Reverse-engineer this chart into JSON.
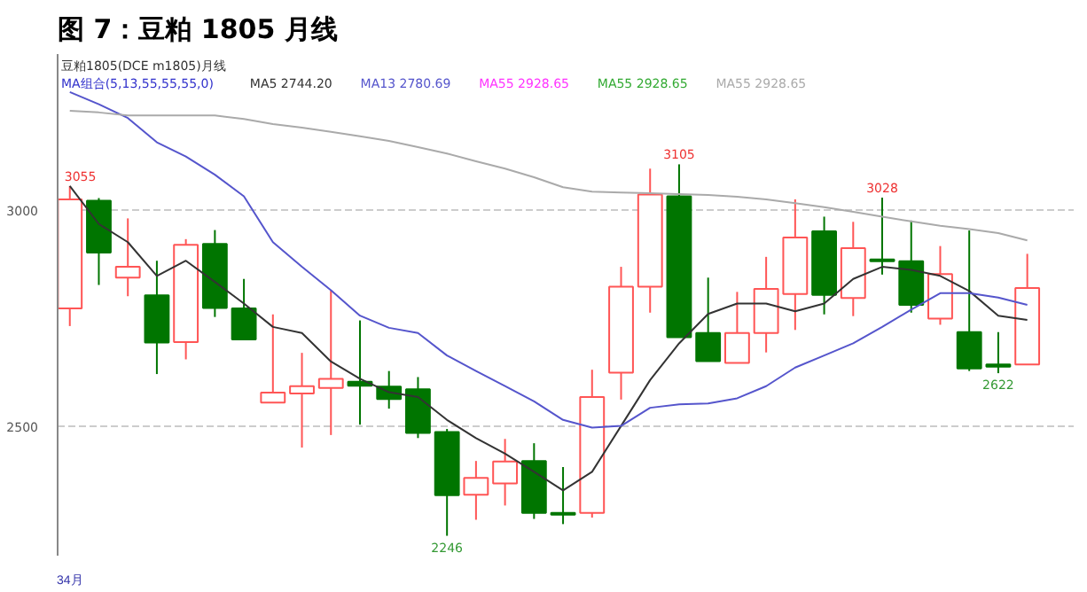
{
  "chart_data": {
    "type": "candlestick",
    "title": "图 7：豆粕 1805 月线",
    "subtitle": "豆粕1805(DCE m1805)月线",
    "legend_title": "MA组合(5,13,55,55,55,0)",
    "categories": [
      "34月",
      null,
      null,
      null,
      null,
      null,
      null,
      null,
      null,
      null,
      null,
      null,
      null,
      null,
      null,
      null,
      null,
      null,
      null,
      null,
      null,
      null,
      null,
      null,
      null,
      null,
      null,
      null,
      null,
      null,
      null,
      null,
      null,
      null
    ],
    "ohlc": [
      [
        2772,
        3055,
        2731,
        3024
      ],
      [
        3021,
        3027,
        2826,
        2901
      ],
      [
        2843,
        2980,
        2800,
        2868
      ],
      [
        2802,
        2882,
        2620,
        2693
      ],
      [
        2694,
        2932,
        2654,
        2919
      ],
      [
        2921,
        2953,
        2752,
        2773
      ],
      [
        2772,
        2840,
        2700,
        2700
      ],
      [
        2554,
        2758,
        2554,
        2577
      ],
      [
        2575,
        2669,
        2450,
        2592
      ],
      [
        2588,
        2814,
        2479,
        2609
      ],
      [
        2602,
        2744,
        2503,
        2593
      ],
      [
        2591,
        2627,
        2540,
        2562
      ],
      [
        2585,
        2613,
        2472,
        2484
      ],
      [
        2486,
        2493,
        2246,
        2340
      ],
      [
        2341,
        2419,
        2283,
        2380
      ],
      [
        2367,
        2470,
        2316,
        2418
      ],
      [
        2419,
        2460,
        2285,
        2299
      ],
      [
        2299,
        2405,
        2273,
        2295
      ],
      [
        2299,
        2630,
        2288,
        2567
      ],
      [
        2623,
        2868,
        2561,
        2822
      ],
      [
        2822,
        3095,
        2762,
        3035
      ],
      [
        3031,
        3105,
        2705,
        2705
      ],
      [
        2715,
        2843,
        2650,
        2650
      ],
      [
        2646,
        2810,
        2646,
        2715
      ],
      [
        2715,
        2891,
        2670,
        2817
      ],
      [
        2805,
        3024,
        2722,
        2936
      ],
      [
        2950,
        2984,
        2758,
        2803
      ],
      [
        2796,
        2972,
        2754,
        2911
      ],
      [
        2885,
        3028,
        2850,
        2881
      ],
      [
        2881,
        2975,
        2762,
        2780
      ],
      [
        2748,
        2916,
        2734,
        2851
      ],
      [
        2717,
        2952,
        2627,
        2633
      ],
      [
        2642,
        2717,
        2622,
        2637
      ],
      [
        2642,
        2898,
        2642,
        2819
      ]
    ],
    "series": [
      {
        "name": "MA5 2744.20",
        "color": "#333333",
        "type": "line",
        "values": [
          3055,
          2967,
          2925,
          2847,
          2882,
          2833,
          2783,
          2729,
          2715,
          2649,
          2609,
          2578,
          2567,
          2514,
          2472,
          2436,
          2394,
          2351,
          2394,
          2500,
          2606,
          2691,
          2759,
          2783,
          2783,
          2765,
          2783,
          2840,
          2868,
          2861,
          2847,
          2812,
          2755,
          2745
        ]
      },
      {
        "name": "MA13 2780.69",
        "color": "#5555cc",
        "type": "line",
        "values": [
          3272,
          3244,
          3212,
          3156,
          3123,
          3081,
          3031,
          2925,
          2868,
          2814,
          2755,
          2727,
          2715,
          2663,
          2627,
          2592,
          2557,
          2514,
          2496,
          2500,
          2542,
          2550,
          2552,
          2564,
          2592,
          2635,
          2663,
          2691,
          2729,
          2769,
          2807,
          2807,
          2797,
          2780
        ]
      },
      {
        "name": "MA55 2928.65",
        "color": "#aaaaaa",
        "type": "line",
        "values": [
          3229,
          3225,
          3218,
          3218,
          3218,
          3218,
          3210,
          3198,
          3190,
          3180,
          3170,
          3159,
          3145,
          3130,
          3112,
          3095,
          3075,
          3052,
          3042,
          3040,
          3038,
          3036,
          3034,
          3030,
          3024,
          3015,
          3006,
          2995,
          2984,
          2973,
          2963,
          2955,
          2946,
          2929
        ]
      }
    ],
    "annotations": [
      "MA55 2928.65",
      "MA55 2928.65",
      "3055",
      "3105",
      "3028",
      "2246",
      "2622"
    ],
    "ylim": [
      2200,
      3360
    ],
    "yticks": [
      2500,
      3000
    ],
    "grid": "y",
    "legend": "top left"
  }
}
